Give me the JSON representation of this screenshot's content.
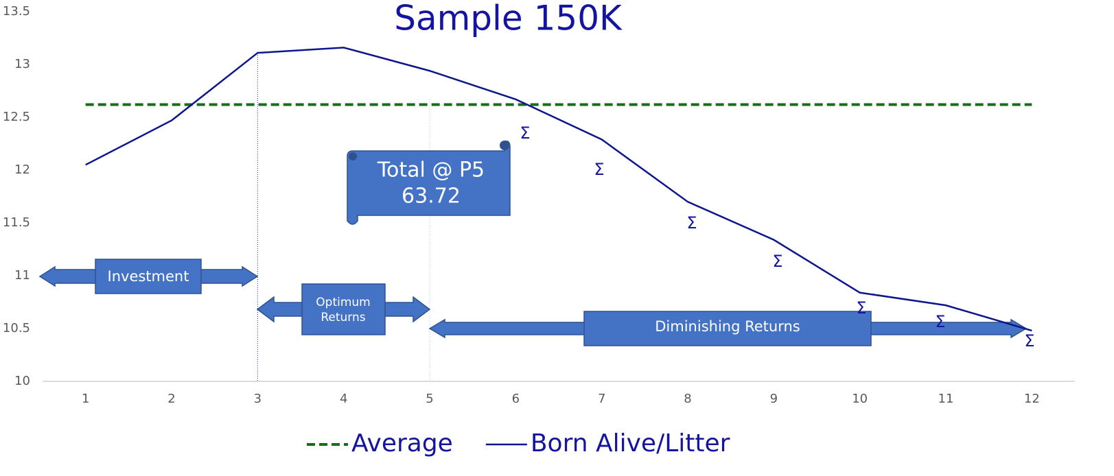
{
  "chart_data": {
    "type": "line",
    "title": "Sample 150K",
    "categories": [
      1,
      2,
      3,
      4,
      5,
      6,
      7,
      8,
      9,
      10,
      11,
      12
    ],
    "series": [
      {
        "name": "Average",
        "color": "#1a6b1a",
        "dashed": true,
        "values": [
          12.62,
          12.62,
          12.62,
          12.62,
          12.62,
          12.62,
          12.62,
          12.62,
          12.62,
          12.62,
          12.62,
          12.62
        ]
      },
      {
        "name": "Born Alive/Litter",
        "color": "#0d158c",
        "values": [
          12.05,
          12.47,
          13.11,
          13.16,
          12.94,
          12.67,
          12.29,
          11.7,
          11.34,
          10.84,
          10.72,
          10.48
        ]
      }
    ],
    "ylim": [
      10,
      13.5
    ],
    "yticks": [
      10,
      10.5,
      11,
      11.5,
      12,
      12.5,
      13,
      13.5
    ],
    "legend": "bottom",
    "annotations": {
      "total_label": "Total @ P5",
      "total_value": "63.72",
      "investment": "Investment",
      "optimum": [
        "Optimum",
        "Returns"
      ],
      "diminishing": "Diminishing Returns",
      "sigmas": [
        "Σ",
        "Σ",
        "Σ",
        "Σ",
        "Σ",
        "Σ",
        "Σ"
      ]
    }
  }
}
